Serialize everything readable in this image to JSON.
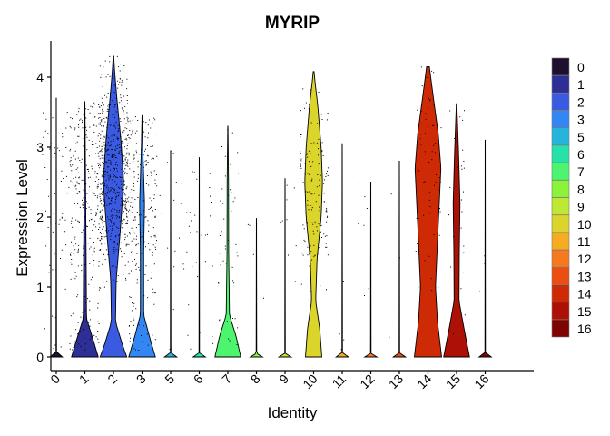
{
  "chart_data": {
    "type": "violin",
    "title": "MYRIP",
    "xlabel": "Identity",
    "ylabel": "Expression Level",
    "ylim": [
      0,
      4.3
    ],
    "y_ticks": [
      0,
      1,
      2,
      3,
      4
    ],
    "categories": [
      "0",
      "1",
      "2",
      "3",
      "5",
      "6",
      "7",
      "8",
      "9",
      "10",
      "11",
      "12",
      "13",
      "14",
      "15",
      "16"
    ],
    "max_values": [
      3.7,
      3.65,
      4.3,
      3.45,
      2.95,
      2.85,
      3.3,
      1.98,
      2.55,
      4.08,
      3.05,
      2.5,
      2.8,
      4.15,
      3.62,
      3.1
    ],
    "colors": [
      "#1e0f2c",
      "#2d2e96",
      "#3a5ae2",
      "#3287f5",
      "#25b5dc",
      "#26e1a8",
      "#4cf56d",
      "#8af33a",
      "#bde833",
      "#dbd42b",
      "#f5ac22",
      "#f87820",
      "#ec4d10",
      "#cf2a06",
      "#ad1106",
      "#7e0402"
    ],
    "legend": {
      "position": "right",
      "entries": [
        "0",
        "1",
        "2",
        "3",
        "5",
        "6",
        "7",
        "8",
        "9",
        "10",
        "11",
        "12",
        "13",
        "14",
        "15",
        "16"
      ]
    },
    "grid": false,
    "jitter_points": true
  }
}
